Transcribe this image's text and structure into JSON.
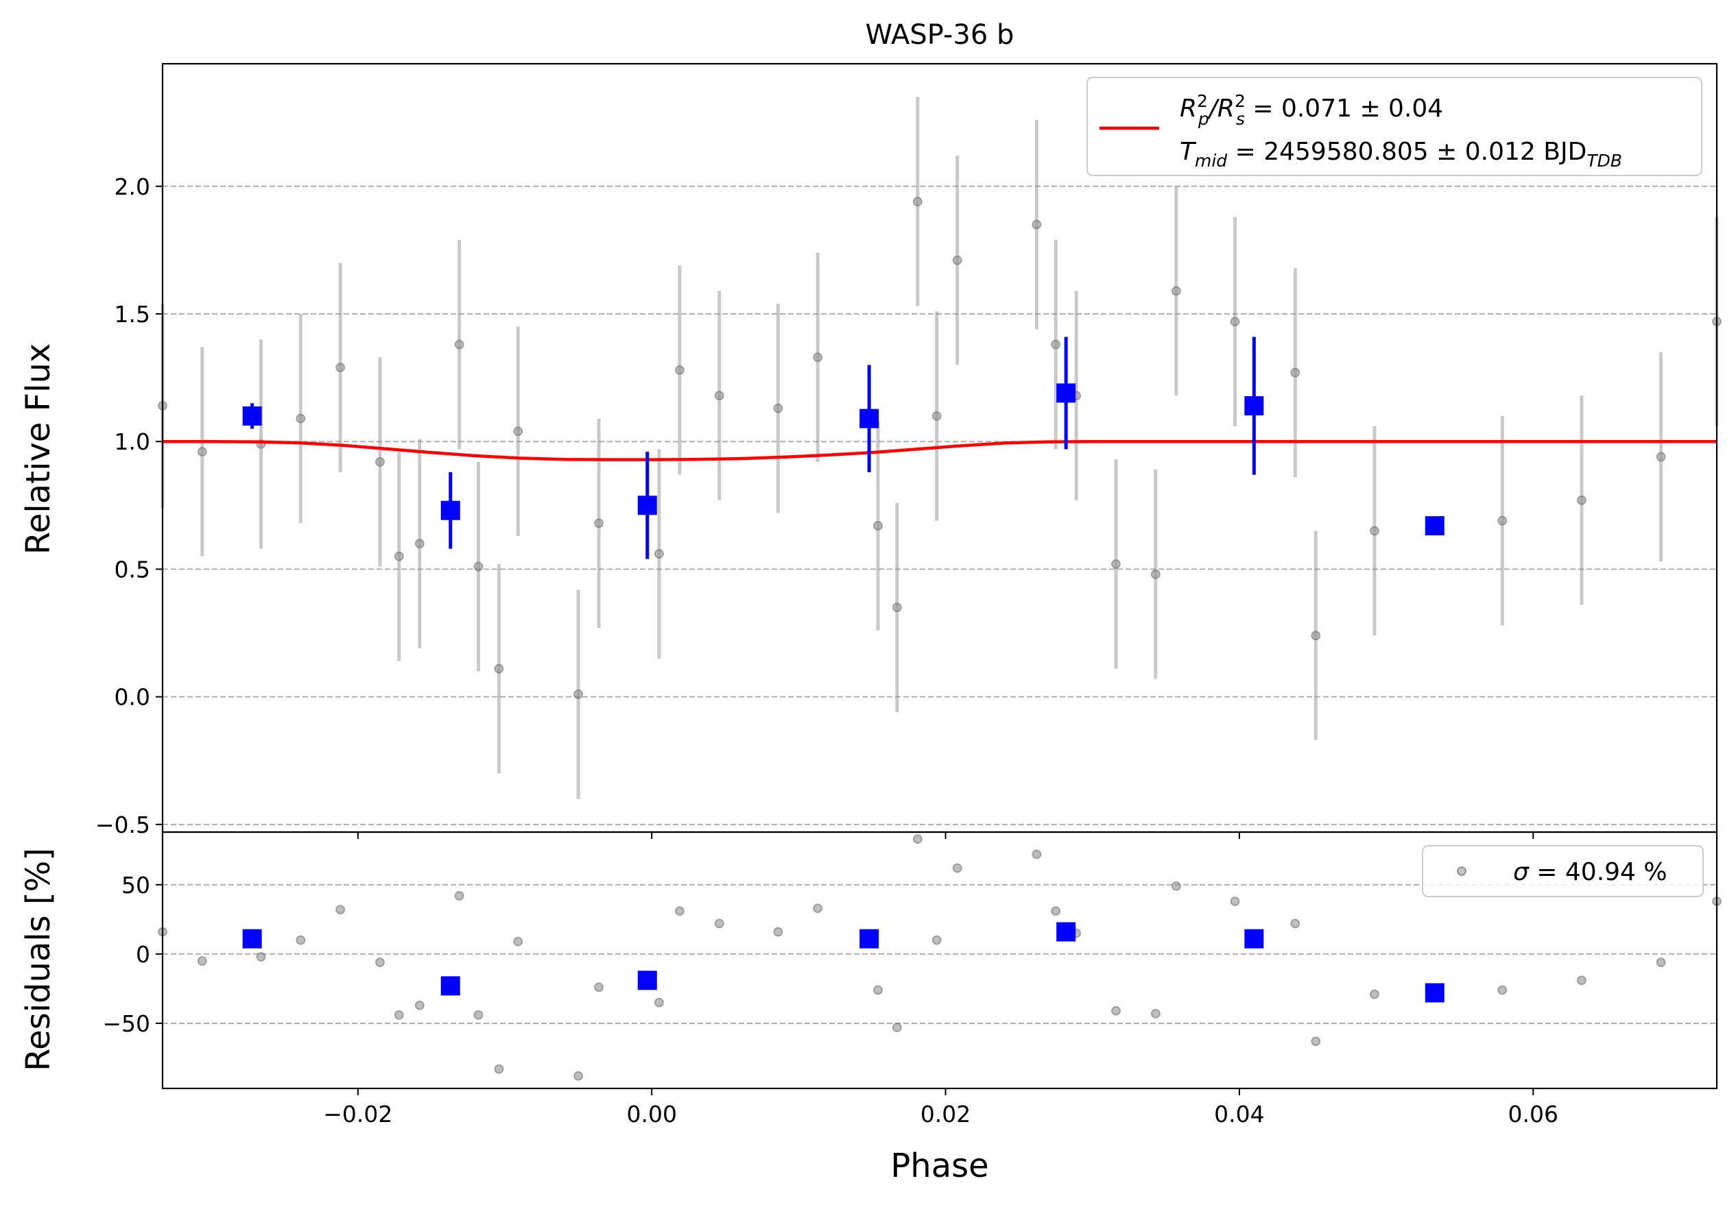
{
  "chart_data": [
    {
      "type": "scatter",
      "panel": "light-curve",
      "title": "WASP-36 b",
      "xlabel": "",
      "ylabel": "Relative Flux",
      "xlim": [
        -0.0333,
        0.0725
      ],
      "ylim": [
        -0.53,
        2.48
      ],
      "xticks": [
        -0.02,
        0.0,
        0.02,
        0.04,
        0.06
      ],
      "yticks": [
        -0.5,
        0.0,
        0.5,
        1.0,
        1.5,
        2.0
      ],
      "ytick_labels": [
        "−0.5",
        "0.0",
        "0.5",
        "1.0",
        "1.5",
        "2.0"
      ],
      "grid": "y-dashed",
      "legend": {
        "position": "top-right",
        "line1": {
          "prefix": "R",
          "sub1": "p",
          "sup1": "2",
          "slash": "/R",
          "sub2": "s",
          "sup2": "2",
          "rest": " = 0.071 ± 0.04"
        },
        "line2": {
          "prefix": "T",
          "sub1": "mid",
          "rest": " = 2459580.805 ± 0.012 BJD",
          "sub2": "TDB"
        }
      },
      "series": [
        {
          "role": "raw",
          "color": "#888888",
          "points": [
            {
              "x": -0.0333,
              "y": 1.14,
              "err": 0.4
            },
            {
              "x": -0.0306,
              "y": 0.96,
              "err": 0.41
            },
            {
              "x": -0.0266,
              "y": 0.99,
              "err": 0.41
            },
            {
              "x": -0.0239,
              "y": 1.09,
              "err": 0.41
            },
            {
              "x": -0.0212,
              "y": 1.29,
              "err": 0.41
            },
            {
              "x": -0.0185,
              "y": 0.92,
              "err": 0.41
            },
            {
              "x": -0.0172,
              "y": 0.55,
              "err": 0.41
            },
            {
              "x": -0.0158,
              "y": 0.6,
              "err": 0.41
            },
            {
              "x": -0.0131,
              "y": 1.38,
              "err": 0.41
            },
            {
              "x": -0.0118,
              "y": 0.51,
              "err": 0.41
            },
            {
              "x": -0.0104,
              "y": 0.11,
              "err": 0.41
            },
            {
              "x": -0.0091,
              "y": 1.04,
              "err": 0.41
            },
            {
              "x": -0.005,
              "y": 0.01,
              "err": 0.41
            },
            {
              "x": -0.0036,
              "y": 0.68,
              "err": 0.41
            },
            {
              "x": 0.0005,
              "y": 0.56,
              "err": 0.41
            },
            {
              "x": 0.0019,
              "y": 1.28,
              "err": 0.41
            },
            {
              "x": 0.0046,
              "y": 1.18,
              "err": 0.41
            },
            {
              "x": 0.0086,
              "y": 1.13,
              "err": 0.41
            },
            {
              "x": 0.0113,
              "y": 1.33,
              "err": 0.41
            },
            {
              "x": 0.0154,
              "y": 0.67,
              "err": 0.41
            },
            {
              "x": 0.0167,
              "y": 0.35,
              "err": 0.41
            },
            {
              "x": 0.0181,
              "y": 1.94,
              "err": 0.41
            },
            {
              "x": 0.0194,
              "y": 1.1,
              "err": 0.41
            },
            {
              "x": 0.0208,
              "y": 1.71,
              "err": 0.41
            },
            {
              "x": 0.0262,
              "y": 1.85,
              "err": 0.41
            },
            {
              "x": 0.0275,
              "y": 1.38,
              "err": 0.41
            },
            {
              "x": 0.0289,
              "y": 1.18,
              "err": 0.41
            },
            {
              "x": 0.0316,
              "y": 0.52,
              "err": 0.41
            },
            {
              "x": 0.0343,
              "y": 0.48,
              "err": 0.41
            },
            {
              "x": 0.0357,
              "y": 1.59,
              "err": 0.41
            },
            {
              "x": 0.0397,
              "y": 1.47,
              "err": 0.41
            },
            {
              "x": 0.0438,
              "y": 1.27,
              "err": 0.41
            },
            {
              "x": 0.0452,
              "y": 0.24,
              "err": 0.41
            },
            {
              "x": 0.0492,
              "y": 0.65,
              "err": 0.41
            },
            {
              "x": 0.0579,
              "y": 0.69,
              "err": 0.41
            },
            {
              "x": 0.0633,
              "y": 0.77,
              "err": 0.41
            },
            {
              "x": 0.0687,
              "y": 0.94,
              "err": 0.41
            },
            {
              "x": 0.0725,
              "y": 1.47,
              "err": 0.41
            }
          ]
        },
        {
          "role": "binned",
          "color": "#0000ff",
          "points": [
            {
              "x": -0.0272,
              "y": 1.1,
              "err": 0.05
            },
            {
              "x": -0.0137,
              "y": 0.73,
              "err": 0.15
            },
            {
              "x": -0.0003,
              "y": 0.75,
              "err": 0.21
            },
            {
              "x": 0.0148,
              "y": 1.09,
              "err": 0.21
            },
            {
              "x": 0.0282,
              "y": 1.19,
              "err": 0.22
            },
            {
              "x": 0.041,
              "y": 1.14,
              "err": 0.27
            },
            {
              "x": 0.0533,
              "y": 0.67,
              "err": 0
            }
          ]
        },
        {
          "role": "model",
          "color": "#ff0000",
          "x": [
            -0.0333,
            -0.03,
            -0.027,
            -0.024,
            -0.021,
            -0.018,
            -0.015,
            -0.012,
            -0.009,
            -0.006,
            -0.003,
            0.0,
            0.003,
            0.006,
            0.009,
            0.012,
            0.015,
            0.018,
            0.021,
            0.024,
            0.027,
            0.03,
            0.04,
            0.05,
            0.06,
            0.07,
            0.0725
          ],
          "y": [
            1.0,
            1.0,
            0.999,
            0.995,
            0.985,
            0.971,
            0.957,
            0.944,
            0.935,
            0.93,
            0.929,
            0.929,
            0.93,
            0.933,
            0.939,
            0.947,
            0.957,
            0.97,
            0.983,
            0.994,
            0.999,
            1.0,
            1.0,
            1.0,
            1.0,
            1.0,
            1.0
          ]
        }
      ]
    },
    {
      "type": "scatter",
      "panel": "residuals",
      "title": "",
      "xlabel": "Phase",
      "ylabel": "Residuals [%]",
      "xlim": [
        -0.0333,
        0.0725
      ],
      "ylim": [
        -97,
        88
      ],
      "xticks": [
        -0.02,
        0.0,
        0.02,
        0.04,
        0.06
      ],
      "xtick_labels": [
        "−0.02",
        "0.00",
        "0.02",
        "0.04",
        "0.06"
      ],
      "yticks": [
        -50,
        0,
        50
      ],
      "ytick_labels": [
        "−50",
        "0",
        "50"
      ],
      "grid": "y-dashed",
      "legend": {
        "position": "top-right",
        "label_symbol": "σ",
        "label_rest": " = 40.94 %"
      },
      "series": [
        {
          "role": "raw",
          "color": "#888888",
          "points": [
            {
              "x": -0.0333,
              "y": 16
            },
            {
              "x": -0.0306,
              "y": -5
            },
            {
              "x": -0.0266,
              "y": -2
            },
            {
              "x": -0.0239,
              "y": 10
            },
            {
              "x": -0.0212,
              "y": 32
            },
            {
              "x": -0.0185,
              "y": -6
            },
            {
              "x": -0.0172,
              "y": -44
            },
            {
              "x": -0.0158,
              "y": -37
            },
            {
              "x": -0.0131,
              "y": 42
            },
            {
              "x": -0.0118,
              "y": -44
            },
            {
              "x": -0.0104,
              "y": -83
            },
            {
              "x": -0.0091,
              "y": 9
            },
            {
              "x": -0.005,
              "y": -88
            },
            {
              "x": -0.0036,
              "y": -24
            },
            {
              "x": 0.0005,
              "y": -35
            },
            {
              "x": 0.0019,
              "y": 31
            },
            {
              "x": 0.0046,
              "y": 22
            },
            {
              "x": 0.0086,
              "y": 16
            },
            {
              "x": 0.0113,
              "y": 33
            },
            {
              "x": 0.0154,
              "y": -26
            },
            {
              "x": 0.0167,
              "y": -53
            },
            {
              "x": 0.0181,
              "y": 83
            },
            {
              "x": 0.0194,
              "y": 10
            },
            {
              "x": 0.0208,
              "y": 62
            },
            {
              "x": 0.0262,
              "y": 72
            },
            {
              "x": 0.0275,
              "y": 31
            },
            {
              "x": 0.0289,
              "y": 15
            },
            {
              "x": 0.0316,
              "y": -41
            },
            {
              "x": 0.0343,
              "y": -43
            },
            {
              "x": 0.0357,
              "y": 49
            },
            {
              "x": 0.0397,
              "y": 38
            },
            {
              "x": 0.0438,
              "y": 22
            },
            {
              "x": 0.0452,
              "y": -63
            },
            {
              "x": 0.0492,
              "y": -29
            },
            {
              "x": 0.0579,
              "y": -26
            },
            {
              "x": 0.0633,
              "y": -19
            },
            {
              "x": 0.0687,
              "y": -6
            },
            {
              "x": 0.0725,
              "y": 38
            }
          ]
        },
        {
          "role": "binned",
          "color": "#0000ff",
          "points": [
            {
              "x": -0.0272,
              "y": 11
            },
            {
              "x": -0.0137,
              "y": -23
            },
            {
              "x": -0.0003,
              "y": -19
            },
            {
              "x": 0.0148,
              "y": 11
            },
            {
              "x": 0.0282,
              "y": 16
            },
            {
              "x": 0.041,
              "y": 11
            },
            {
              "x": 0.0533,
              "y": -28
            }
          ]
        }
      ]
    }
  ]
}
